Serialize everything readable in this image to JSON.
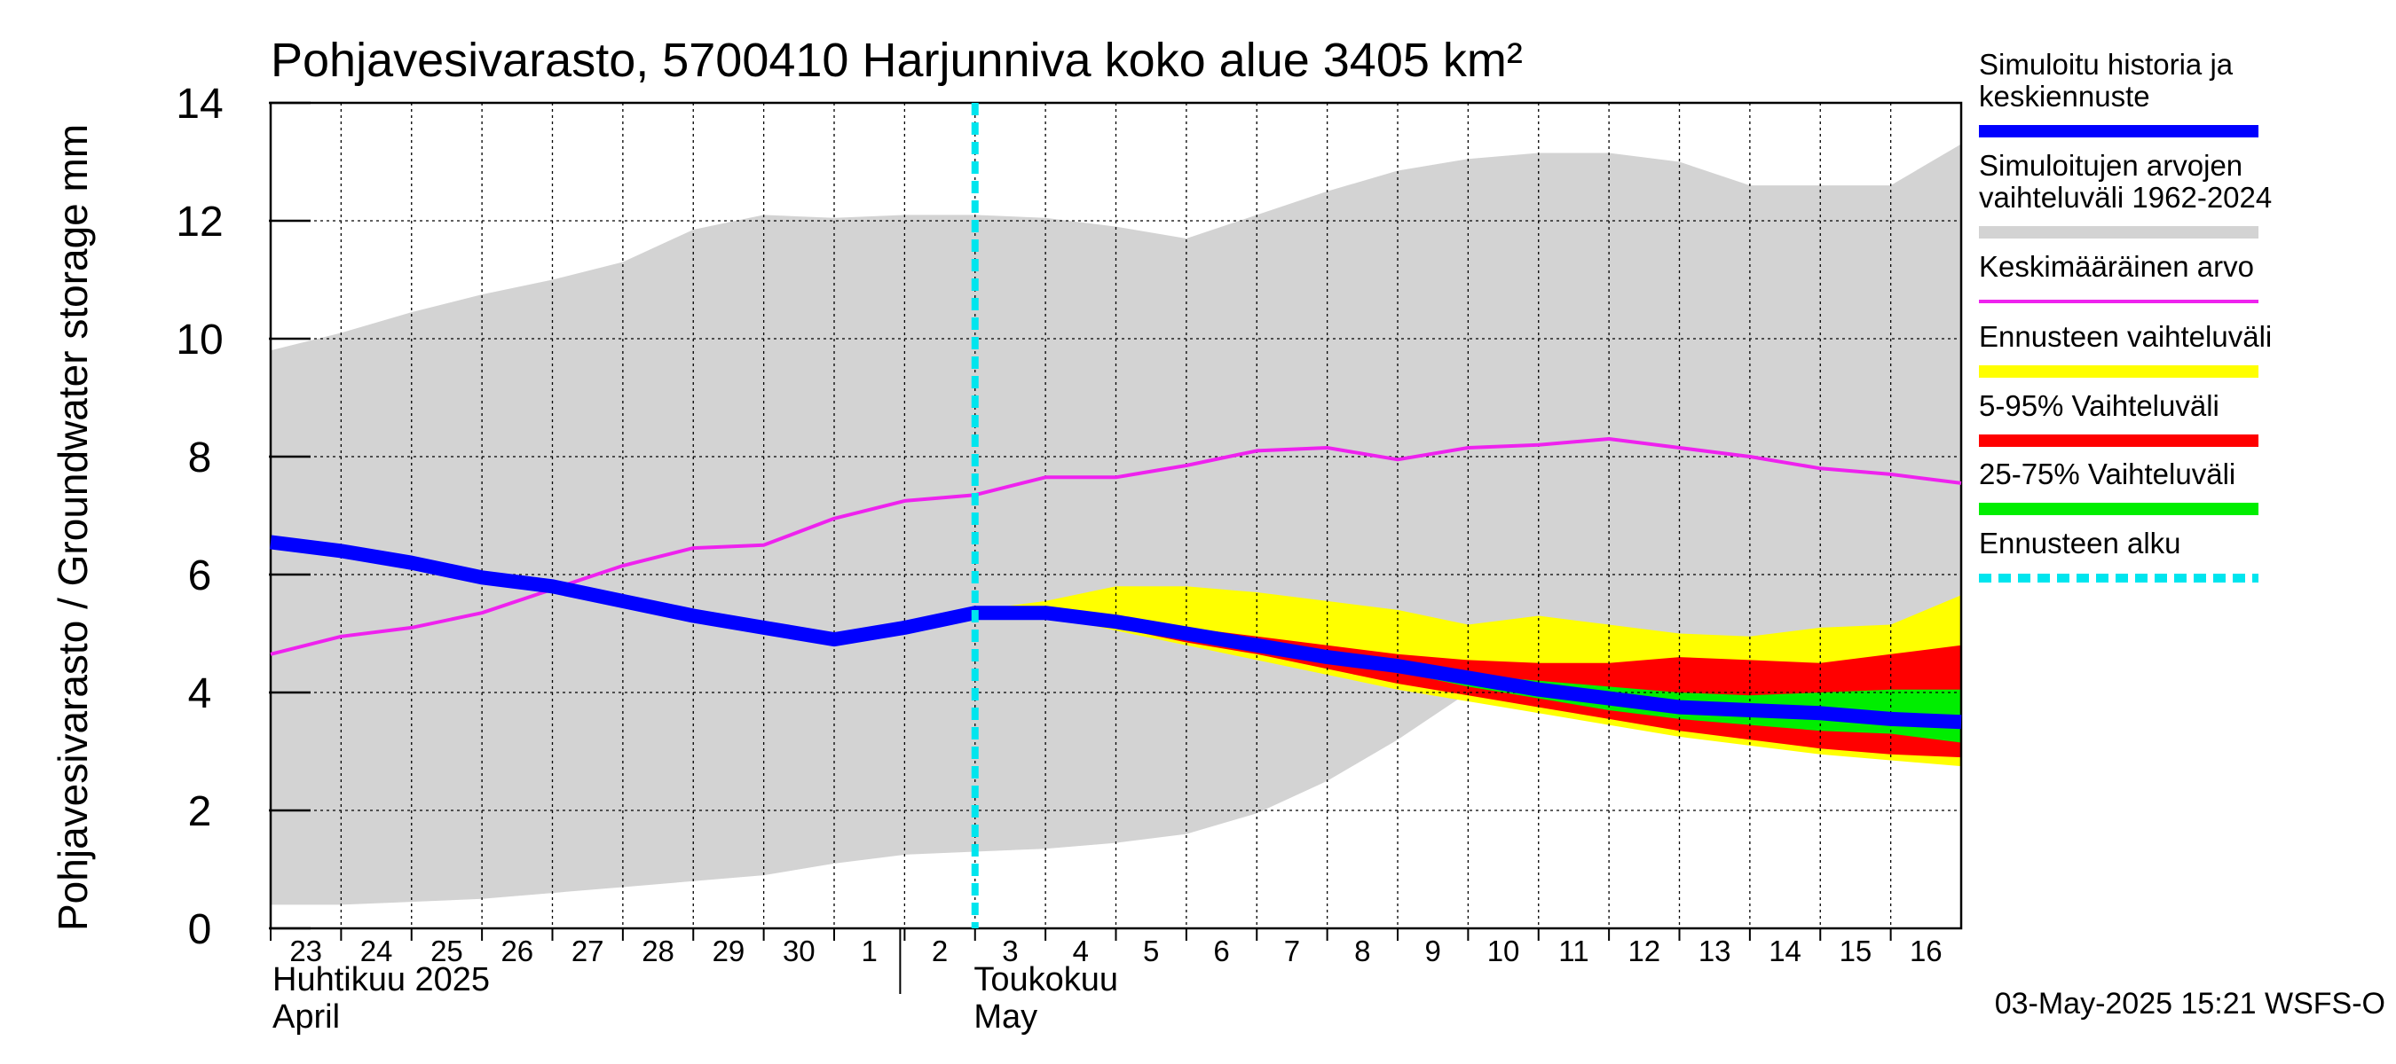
{
  "chart_data": {
    "type": "area",
    "title": "Pohjavesivarasto, 5700410 Harjunniva koko alue 3405 km²",
    "ylabel": "Pohjavesivarasto / Groundwater storage   mm",
    "ylim": [
      0,
      14
    ],
    "yticks": [
      0,
      2,
      4,
      6,
      8,
      10,
      12,
      14
    ],
    "xlim": [
      0,
      24
    ],
    "day_labels": [
      "23",
      "24",
      "25",
      "26",
      "27",
      "28",
      "29",
      "30",
      "1",
      "2",
      "3",
      "4",
      "5",
      "6",
      "7",
      "8",
      "9",
      "10",
      "11",
      "12",
      "13",
      "14",
      "15",
      "16"
    ],
    "month_labels": [
      {
        "line1": "Huhtikuu  2025",
        "line2": "April",
        "start_day": 0
      },
      {
        "line1": "Toukokuu",
        "line2": "May",
        "start_day": 9
      }
    ],
    "forecast_start_day": 10,
    "grid": true,
    "legend_position": "right",
    "series": [
      {
        "key": "hist_range",
        "name": "Simuloitujen arvojen vaihteluväli 1962-2024",
        "color": "#d3d3d3",
        "x": [
          0,
          1,
          2,
          3,
          4,
          5,
          6,
          7,
          8,
          9,
          10,
          11,
          12,
          13,
          14,
          15,
          16,
          17,
          18,
          19,
          20,
          21,
          22,
          23,
          24
        ],
        "upper": [
          9.8,
          10.1,
          10.45,
          10.75,
          11.0,
          11.3,
          11.85,
          12.1,
          12.05,
          12.1,
          12.1,
          12.05,
          11.9,
          11.7,
          12.1,
          12.5,
          12.85,
          13.05,
          13.15,
          13.15,
          13.0,
          12.6,
          12.6,
          12.6,
          13.3
        ],
        "lower": [
          0.4,
          0.4,
          0.45,
          0.5,
          0.6,
          0.7,
          0.8,
          0.9,
          1.1,
          1.25,
          1.3,
          1.35,
          1.45,
          1.6,
          1.95,
          2.5,
          3.2,
          4.0,
          4.2,
          4.3,
          4.35,
          4.35,
          4.25,
          4.1,
          4.0
        ]
      },
      {
        "key": "mean",
        "name": "Keskimääräinen arvo",
        "color": "#ee22ee",
        "x": [
          0,
          1,
          2,
          3,
          4,
          5,
          6,
          7,
          8,
          9,
          10,
          11,
          12,
          13,
          14,
          15,
          16,
          17,
          18,
          19,
          20,
          21,
          22,
          23,
          24
        ],
        "values": [
          4.65,
          4.95,
          5.1,
          5.35,
          5.75,
          6.15,
          6.45,
          6.5,
          6.95,
          7.25,
          7.35,
          7.65,
          7.65,
          7.85,
          8.1,
          8.15,
          7.95,
          8.15,
          8.2,
          8.3,
          8.15,
          8.0,
          7.8,
          7.7,
          7.55
        ]
      },
      {
        "key": "forecast_range",
        "name": "Ennusteen vaihteluväli",
        "color": "#ffff00",
        "x": [
          10,
          11,
          12,
          13,
          14,
          15,
          16,
          17,
          18,
          19,
          20,
          21,
          22,
          23,
          24
        ],
        "upper": [
          5.4,
          5.55,
          5.8,
          5.8,
          5.7,
          5.55,
          5.4,
          5.15,
          5.3,
          5.15,
          5.0,
          4.95,
          5.1,
          5.15,
          5.65
        ],
        "lower": [
          5.35,
          5.3,
          5.05,
          4.8,
          4.55,
          4.3,
          4.05,
          3.85,
          3.65,
          3.45,
          3.25,
          3.1,
          2.95,
          2.85,
          2.75
        ]
      },
      {
        "key": "p5_95",
        "name": "5-95% Vaihteluväli",
        "color": "#ff0000",
        "x": [
          10,
          11,
          12,
          13,
          14,
          15,
          16,
          17,
          18,
          19,
          20,
          21,
          22,
          23,
          24
        ],
        "upper": [
          5.4,
          5.35,
          5.25,
          5.1,
          4.95,
          4.8,
          4.65,
          4.55,
          4.5,
          4.5,
          4.6,
          4.55,
          4.5,
          4.65,
          4.8
        ],
        "lower": [
          5.35,
          5.3,
          5.1,
          4.85,
          4.65,
          4.4,
          4.15,
          3.95,
          3.75,
          3.55,
          3.35,
          3.2,
          3.05,
          2.95,
          2.9
        ]
      },
      {
        "key": "p25_75",
        "name": "25-75% Vaihteluväli",
        "color": "#00ee00",
        "x": [
          10,
          11,
          12,
          13,
          14,
          15,
          16,
          17,
          18,
          19,
          20,
          21,
          22,
          23,
          24
        ],
        "upper": [
          5.4,
          5.35,
          5.25,
          5.1,
          4.9,
          4.7,
          4.5,
          4.3,
          4.2,
          4.1,
          4.0,
          3.95,
          4.0,
          4.05,
          4.05
        ],
        "lower": [
          5.35,
          5.3,
          5.15,
          4.95,
          4.75,
          4.55,
          4.35,
          4.1,
          3.9,
          3.7,
          3.55,
          3.45,
          3.35,
          3.3,
          3.15
        ]
      },
      {
        "key": "simulated",
        "name": "Simuloitu historia ja keskiennuste",
        "color": "#0000ff",
        "x": [
          0,
          1,
          2,
          3,
          4,
          5,
          6,
          7,
          8,
          9,
          10,
          11,
          12,
          13,
          14,
          15,
          16,
          17,
          18,
          19,
          20,
          21,
          22,
          23,
          24
        ],
        "values": [
          6.55,
          6.4,
          6.2,
          5.95,
          5.8,
          5.55,
          5.3,
          5.1,
          4.9,
          5.1,
          5.35,
          5.35,
          5.2,
          5.0,
          4.8,
          4.6,
          4.45,
          4.25,
          4.05,
          3.9,
          3.75,
          3.7,
          3.65,
          3.55,
          3.5
        ]
      }
    ],
    "legend": [
      {
        "key": "simulated",
        "lines": [
          "Simuloitu historia ja",
          "keskiennuste"
        ],
        "color": "#0000ff",
        "style": "solid"
      },
      {
        "key": "hist_range",
        "lines": [
          "Simuloitujen arvojen",
          "vaihteluväli 1962-2024"
        ],
        "color": "#d3d3d3",
        "style": "solid"
      },
      {
        "key": "mean",
        "lines": [
          "Keskimääräinen arvo"
        ],
        "color": "#ee22ee",
        "style": "thin"
      },
      {
        "key": "forecast_range",
        "lines": [
          "Ennusteen vaihteluväli"
        ],
        "color": "#ffff00",
        "style": "solid"
      },
      {
        "key": "p5_95",
        "lines": [
          "5-95% Vaihteluväli"
        ],
        "color": "#ff0000",
        "style": "solid"
      },
      {
        "key": "p25_75",
        "lines": [
          "25-75% Vaihteluväli"
        ],
        "color": "#00ee00",
        "style": "solid"
      },
      {
        "key": "forecast_start",
        "lines": [
          "Ennusteen alku"
        ],
        "color": "#00e5ee",
        "style": "dashed"
      }
    ],
    "footer": "03-May-2025 15:21 WSFS-O"
  }
}
